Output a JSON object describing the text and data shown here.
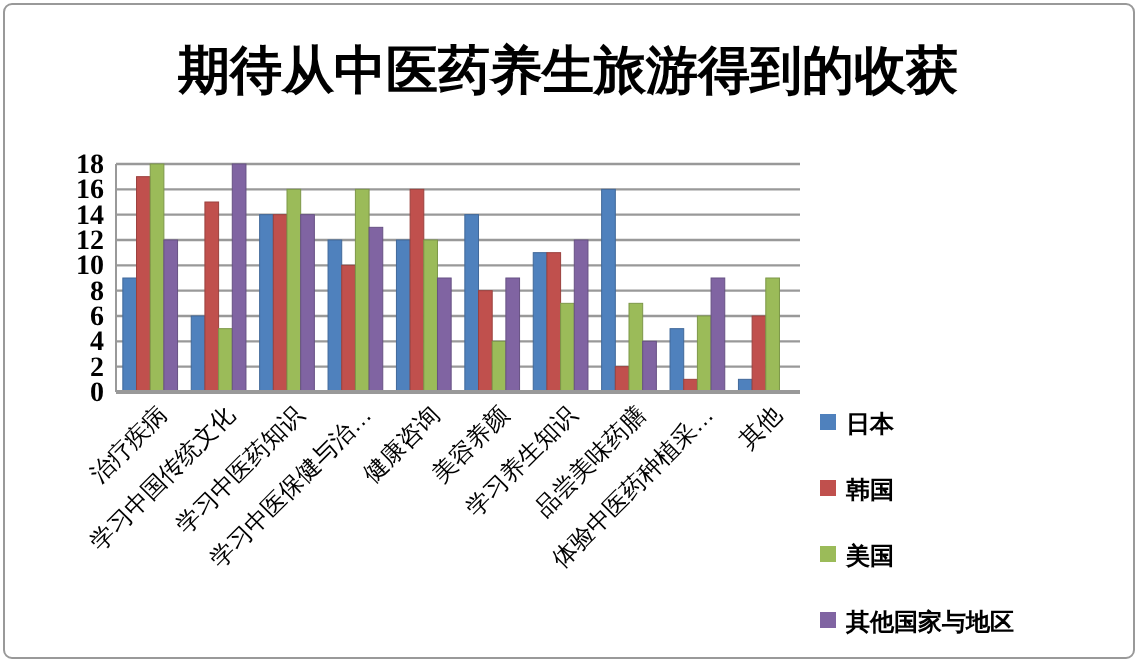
{
  "chart_data": {
    "type": "bar",
    "title": "期待从中医药养生旅游得到的收获",
    "categories": [
      "治疗疾病",
      "学习中国传统文化",
      "学习中医药知识",
      "学习中医保健与治…",
      "健康咨询",
      "美容养颜",
      "学习养生知识",
      "品尝美味药膳",
      "体验中医药种植采…",
      "其他"
    ],
    "series": [
      {
        "name": "日本",
        "color": "#4f81bd",
        "values": [
          9,
          6,
          14,
          12,
          12,
          14,
          11,
          16,
          5,
          1
        ]
      },
      {
        "name": "韩国",
        "color": "#c0504d",
        "values": [
          17,
          15,
          14,
          10,
          16,
          8,
          11,
          2,
          1,
          6
        ]
      },
      {
        "name": "美国",
        "color": "#9bbb59",
        "values": [
          18,
          5,
          16,
          16,
          12,
          4,
          7,
          7,
          6,
          9
        ]
      },
      {
        "name": "其他国家与地区",
        "color": "#8064a2",
        "values": [
          12,
          18,
          14,
          13,
          9,
          9,
          12,
          4,
          9,
          0
        ]
      }
    ],
    "ylim": [
      0,
      18
    ],
    "yticks": [
      0,
      2,
      4,
      6,
      8,
      10,
      12,
      14,
      16,
      18
    ],
    "grid": "y",
    "legend": "right"
  }
}
